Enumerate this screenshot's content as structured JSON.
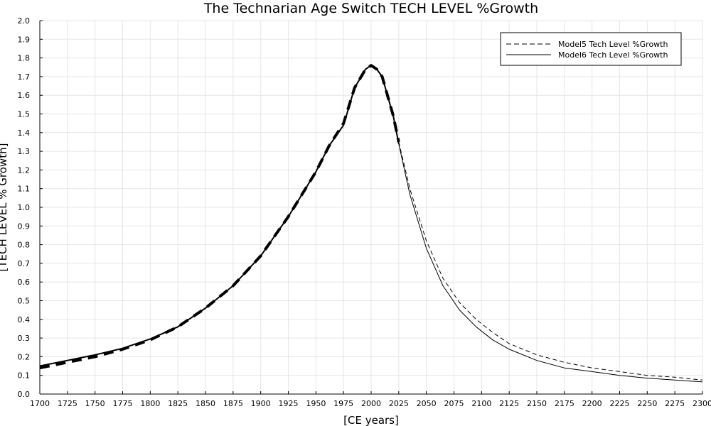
{
  "chart_data": {
    "type": "line",
    "title": "The Technarian Age Switch TECH LEVEL %Growth",
    "xlabel": "[CE years]",
    "ylabel": "[TECH LEVEL % Growth]",
    "xlim": [
      1700,
      2300
    ],
    "ylim": [
      0,
      2.0
    ],
    "xticks": [
      1700,
      1725,
      1750,
      1775,
      1800,
      1825,
      1850,
      1875,
      1900,
      1925,
      1950,
      1975,
      2000,
      2025,
      2050,
      2075,
      2100,
      2125,
      2150,
      2175,
      2200,
      2225,
      2250,
      2275,
      2300
    ],
    "yticks": [
      "0.0",
      "0.1",
      "0.2",
      "0.3",
      "0.4",
      "0.5",
      "0.6",
      "0.7",
      "0.8",
      "0.9",
      "1.0",
      "1.1",
      "1.2",
      "1.3",
      "1.4",
      "1.5",
      "1.6",
      "1.7",
      "1.8",
      "1.9",
      "2.0"
    ],
    "grid": true,
    "legend_position": "top-right",
    "series": [
      {
        "name": "Model5 Tech Level %Growth",
        "style": "dashed",
        "color": "#000000",
        "x": [
          1700,
          1725,
          1750,
          1775,
          1800,
          1825,
          1850,
          1875,
          1900,
          1925,
          1950,
          1962,
          1975,
          1985,
          1995,
          2000,
          2005,
          2010,
          2020,
          2025,
          2035,
          2050,
          2065,
          2080,
          2095,
          2110,
          2125,
          2150,
          2175,
          2200,
          2225,
          2250,
          2275,
          2300
        ],
        "y": [
          0.14,
          0.17,
          0.2,
          0.24,
          0.29,
          0.36,
          0.46,
          0.58,
          0.74,
          0.95,
          1.19,
          1.33,
          1.45,
          1.64,
          1.74,
          1.76,
          1.74,
          1.7,
          1.49,
          1.35,
          1.1,
          0.82,
          0.62,
          0.49,
          0.4,
          0.33,
          0.27,
          0.21,
          0.17,
          0.14,
          0.12,
          0.1,
          0.09,
          0.075
        ]
      },
      {
        "name": "Model6 Tech Level %Growth",
        "style": "solid",
        "color": "#000000",
        "x": [
          1700,
          1725,
          1750,
          1775,
          1800,
          1825,
          1850,
          1875,
          1900,
          1925,
          1950,
          1962,
          1975,
          1985,
          1995,
          2000,
          2005,
          2010,
          2020,
          2025,
          2035,
          2050,
          2065,
          2080,
          2095,
          2110,
          2125,
          2150,
          2175,
          2200,
          2225,
          2250,
          2275,
          2300
        ],
        "y": [
          0.15,
          0.18,
          0.21,
          0.245,
          0.295,
          0.36,
          0.46,
          0.58,
          0.74,
          0.95,
          1.19,
          1.33,
          1.44,
          1.64,
          1.74,
          1.76,
          1.74,
          1.7,
          1.49,
          1.34,
          1.07,
          0.78,
          0.58,
          0.45,
          0.36,
          0.29,
          0.24,
          0.18,
          0.14,
          0.12,
          0.1,
          0.085,
          0.075,
          0.065
        ]
      }
    ]
  }
}
